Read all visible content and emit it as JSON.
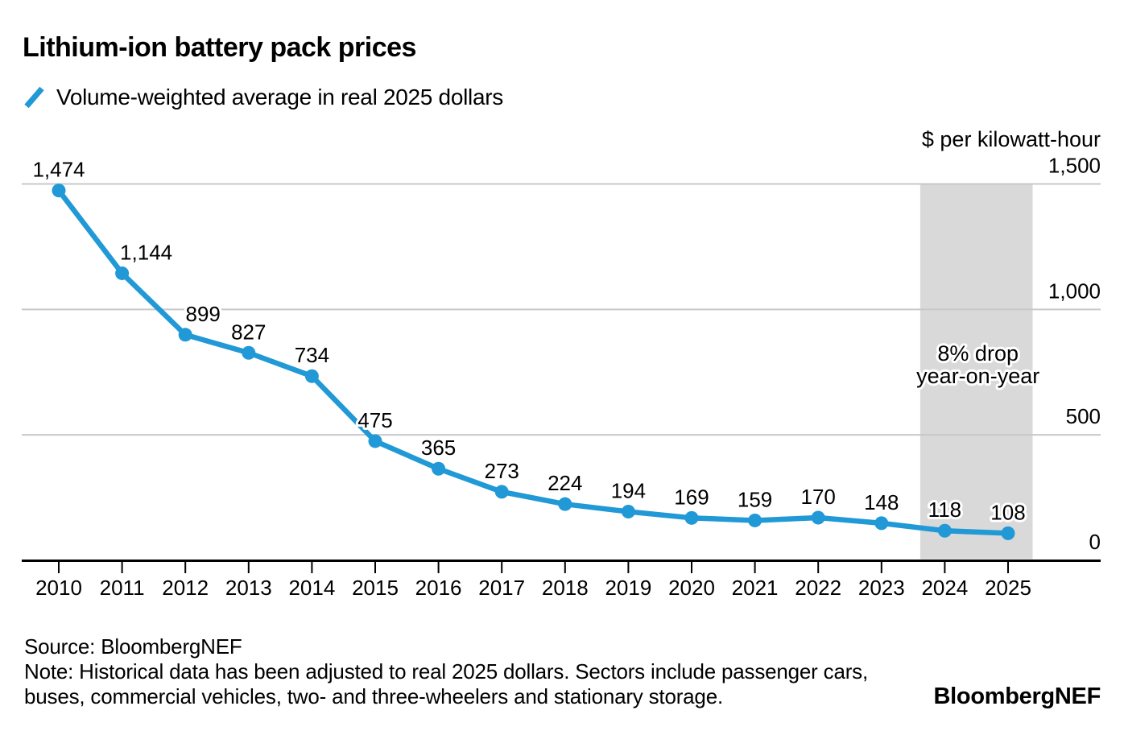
{
  "title": "Lithium-ion battery pack prices",
  "legend": {
    "label": "Volume-weighted average in real 2025 dollars"
  },
  "chart_data": {
    "type": "line",
    "title": "Lithium-ion battery pack prices",
    "x": [
      2010,
      2011,
      2012,
      2013,
      2014,
      2015,
      2016,
      2017,
      2018,
      2019,
      2020,
      2021,
      2022,
      2023,
      2024,
      2025
    ],
    "values": [
      1474,
      1144,
      899,
      827,
      734,
      475,
      365,
      273,
      224,
      194,
      169,
      159,
      170,
      148,
      118,
      108
    ],
    "point_labels": [
      "1,474",
      "1,144",
      "899",
      "827",
      "734",
      "475",
      "365",
      "273",
      "224",
      "194",
      "169",
      "159",
      "170",
      "148",
      "118",
      "108"
    ],
    "series_name": "Volume-weighted average in real 2025 dollars",
    "ylabel": "$ per kilowatt-hour",
    "ylim": [
      0,
      1500
    ],
    "y_ticks": [
      {
        "value": 1500,
        "label": "1,500"
      },
      {
        "value": 1000,
        "label": "1,000"
      },
      {
        "value": 500,
        "label": "500"
      },
      {
        "value": 0,
        "label": "0"
      }
    ],
    "grid": "horizontal",
    "legend_position": "top-left",
    "annotation": {
      "lines": [
        "8% drop",
        "year-on-year"
      ],
      "highlight_years": [
        2024,
        2025
      ]
    }
  },
  "colors": {
    "line": "#2199d6",
    "band": "#d9d9d9",
    "grid": "#c8c8c8",
    "axis": "#000000",
    "text": "#000000",
    "background": "#ffffff"
  },
  "footer": {
    "source": "Source: BloombergNEF",
    "note_lines": [
      "Note: Historical data has been adjusted to real 2025 dollars. Sectors include passenger cars,",
      "buses, commercial vehicles, two- and three-wheelers and stationary storage."
    ],
    "logo": "BloombergNEF"
  }
}
